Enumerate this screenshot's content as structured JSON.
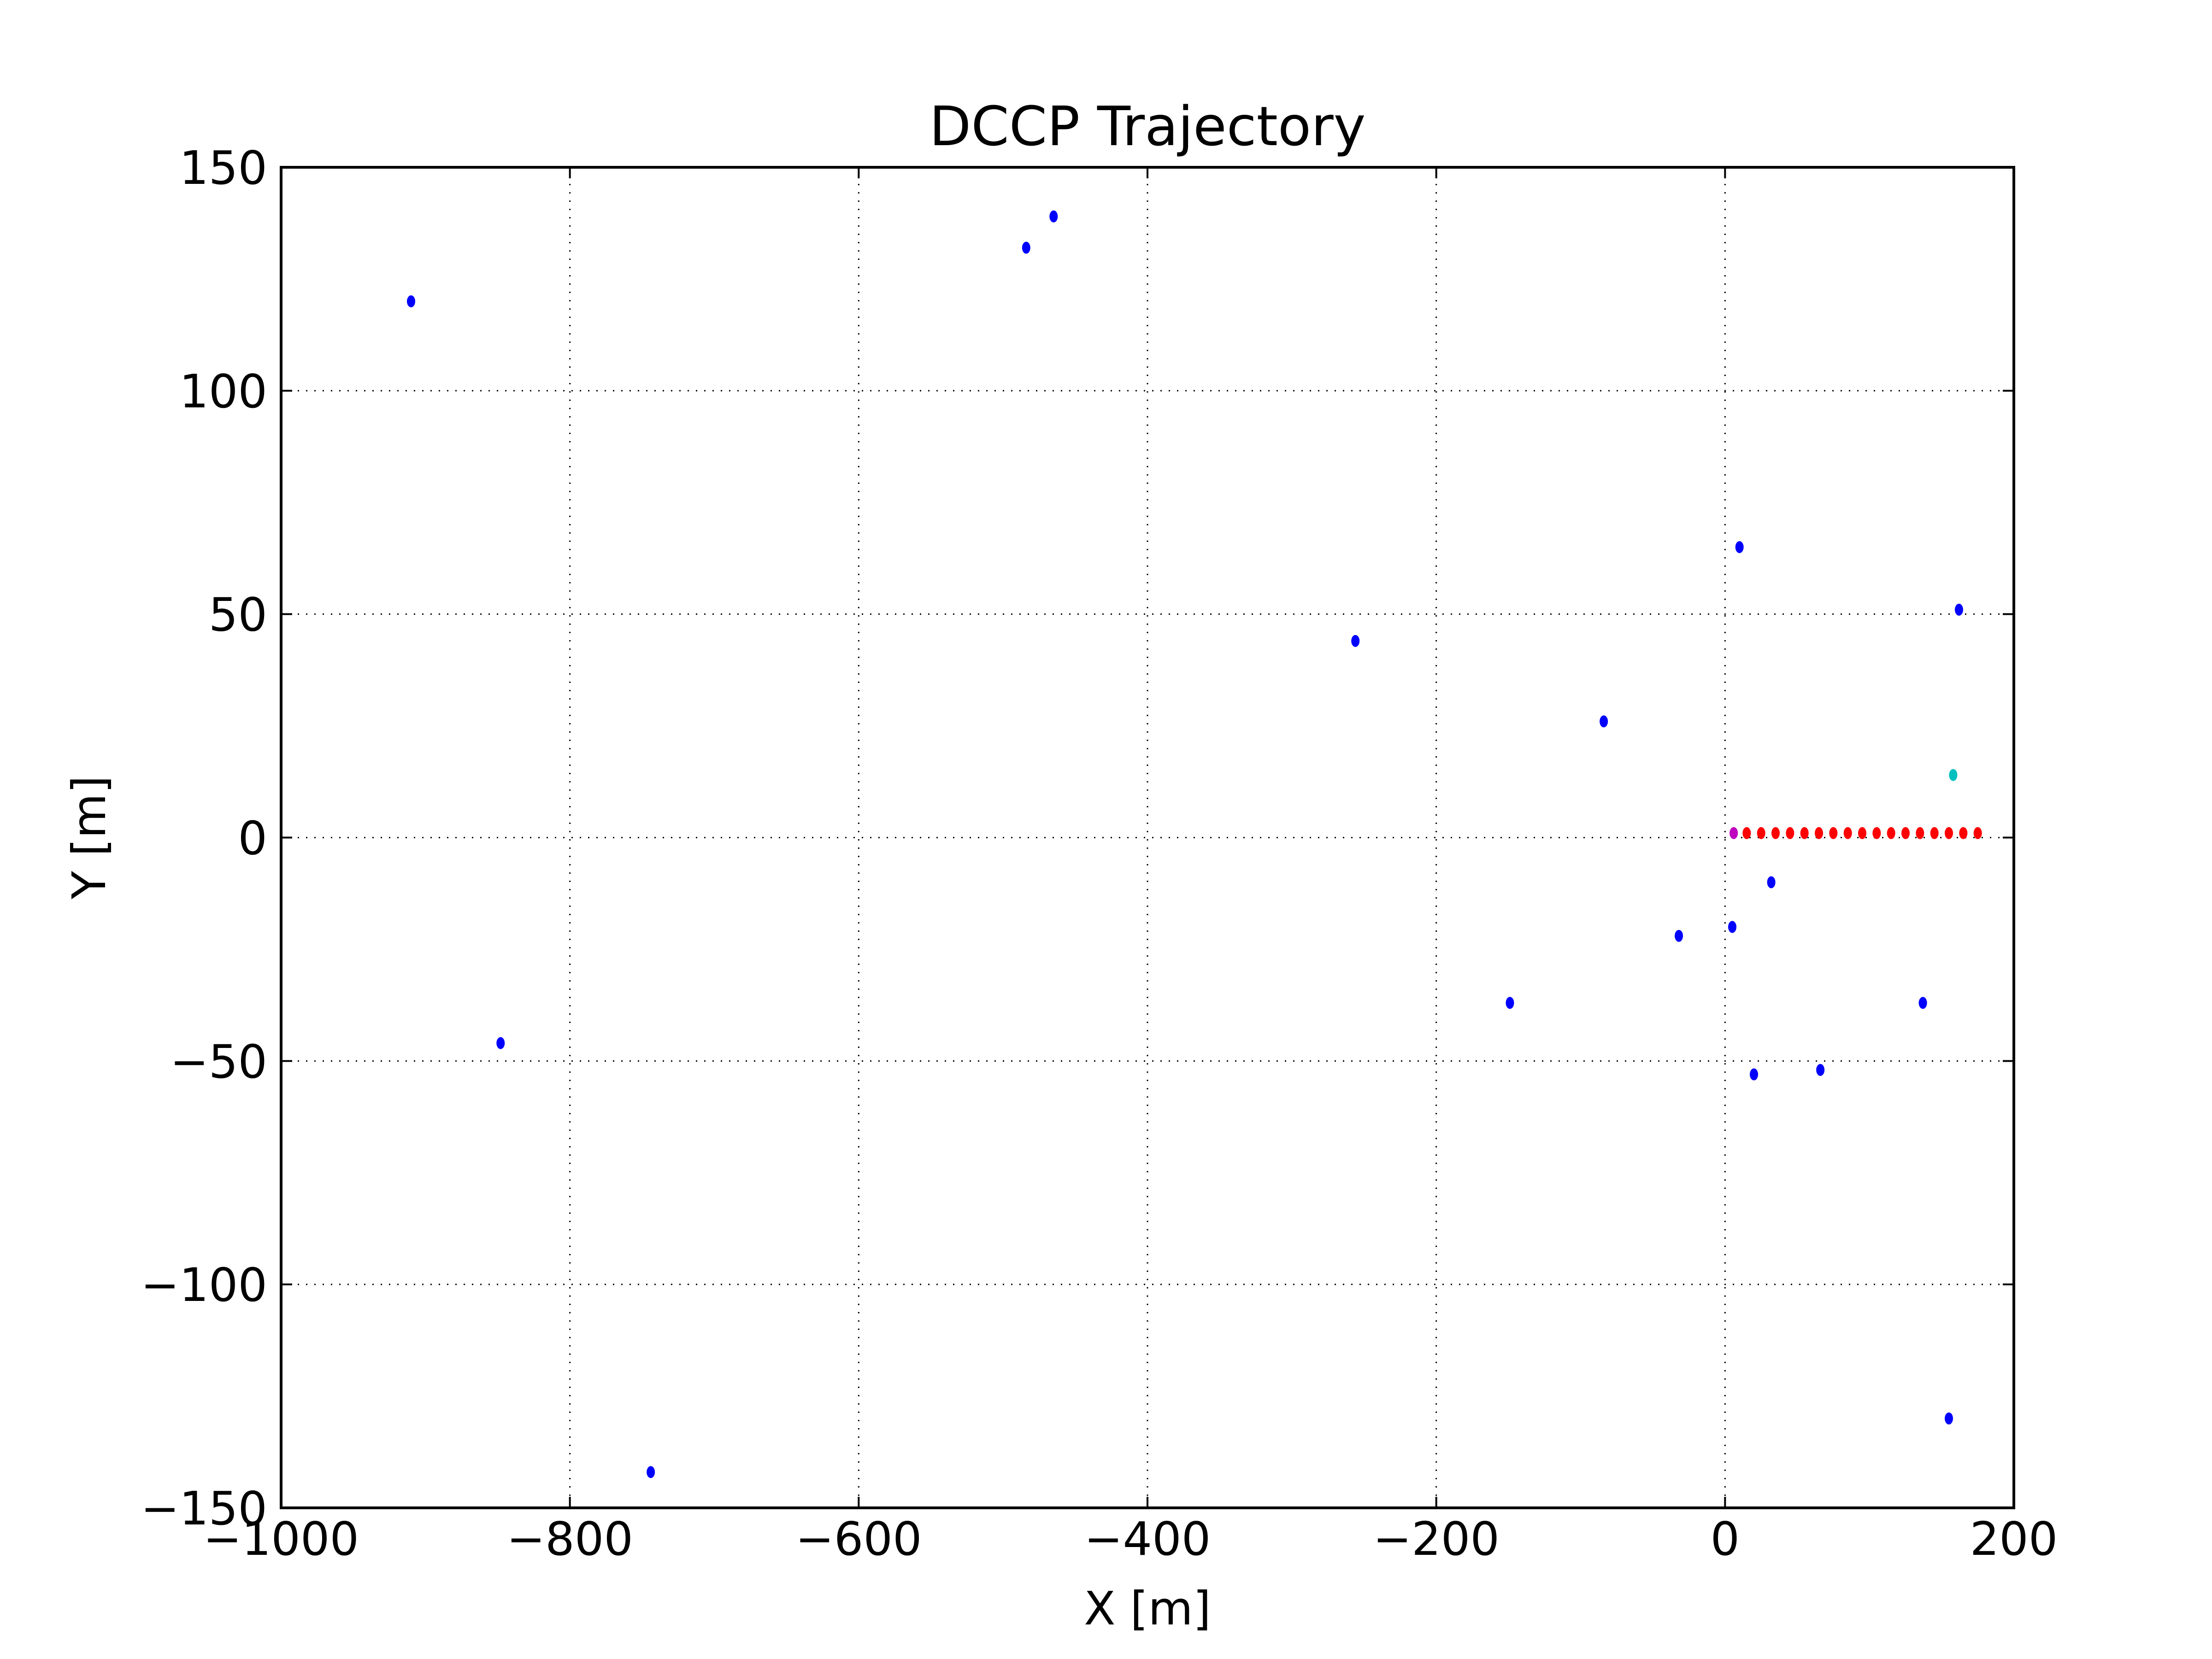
{
  "chart_data": {
    "type": "scatter",
    "title": "DCCP Trajectory",
    "xlabel": "X [m]",
    "ylabel": "Y [m]",
    "xlim": [
      -1000,
      200
    ],
    "ylim": [
      -150,
      150
    ],
    "grid": true,
    "x_ticks": [
      -1000,
      -800,
      -600,
      -400,
      -200,
      0,
      200
    ],
    "y_ticks": [
      -150,
      -100,
      -50,
      0,
      50,
      100,
      150
    ],
    "x_tick_labels": [
      "−1000",
      "−800",
      "−600",
      "−400",
      "−200",
      "0",
      "200"
    ],
    "y_tick_labels": [
      "−150",
      "−100",
      "−50",
      "0",
      "50",
      "100",
      "150"
    ],
    "series": [
      {
        "color": "#0000ff",
        "points": [
          [
            -910,
            120
          ],
          [
            -848,
            -46
          ],
          [
            -744,
            -142
          ],
          [
            -484,
            132
          ],
          [
            -465,
            139
          ],
          [
            -256,
            44
          ],
          [
            -149,
            -37
          ],
          [
            -84,
            26
          ],
          [
            -32,
            -22
          ],
          [
            5,
            -20
          ],
          [
            10,
            65
          ],
          [
            20,
            -53
          ],
          [
            32,
            -10
          ],
          [
            66,
            -52
          ],
          [
            137,
            -37
          ],
          [
            155,
            -130
          ],
          [
            162,
            51
          ]
        ]
      },
      {
        "color": "#ff0000",
        "points": [
          [
            15,
            1
          ],
          [
            25,
            1
          ],
          [
            35,
            1
          ],
          [
            45,
            1
          ],
          [
            55,
            1
          ],
          [
            65,
            1
          ],
          [
            75,
            1
          ],
          [
            85,
            1
          ],
          [
            95,
            1
          ],
          [
            105,
            1
          ],
          [
            115,
            1
          ],
          [
            125,
            1
          ],
          [
            135,
            1
          ],
          [
            145,
            1
          ],
          [
            155,
            1
          ],
          [
            165,
            1
          ],
          [
            175,
            1
          ]
        ]
      },
      {
        "color": "#bf00bf",
        "points": [
          [
            6,
            1
          ]
        ]
      },
      {
        "color": "#00bfbf",
        "points": [
          [
            158,
            14
          ]
        ]
      }
    ]
  }
}
